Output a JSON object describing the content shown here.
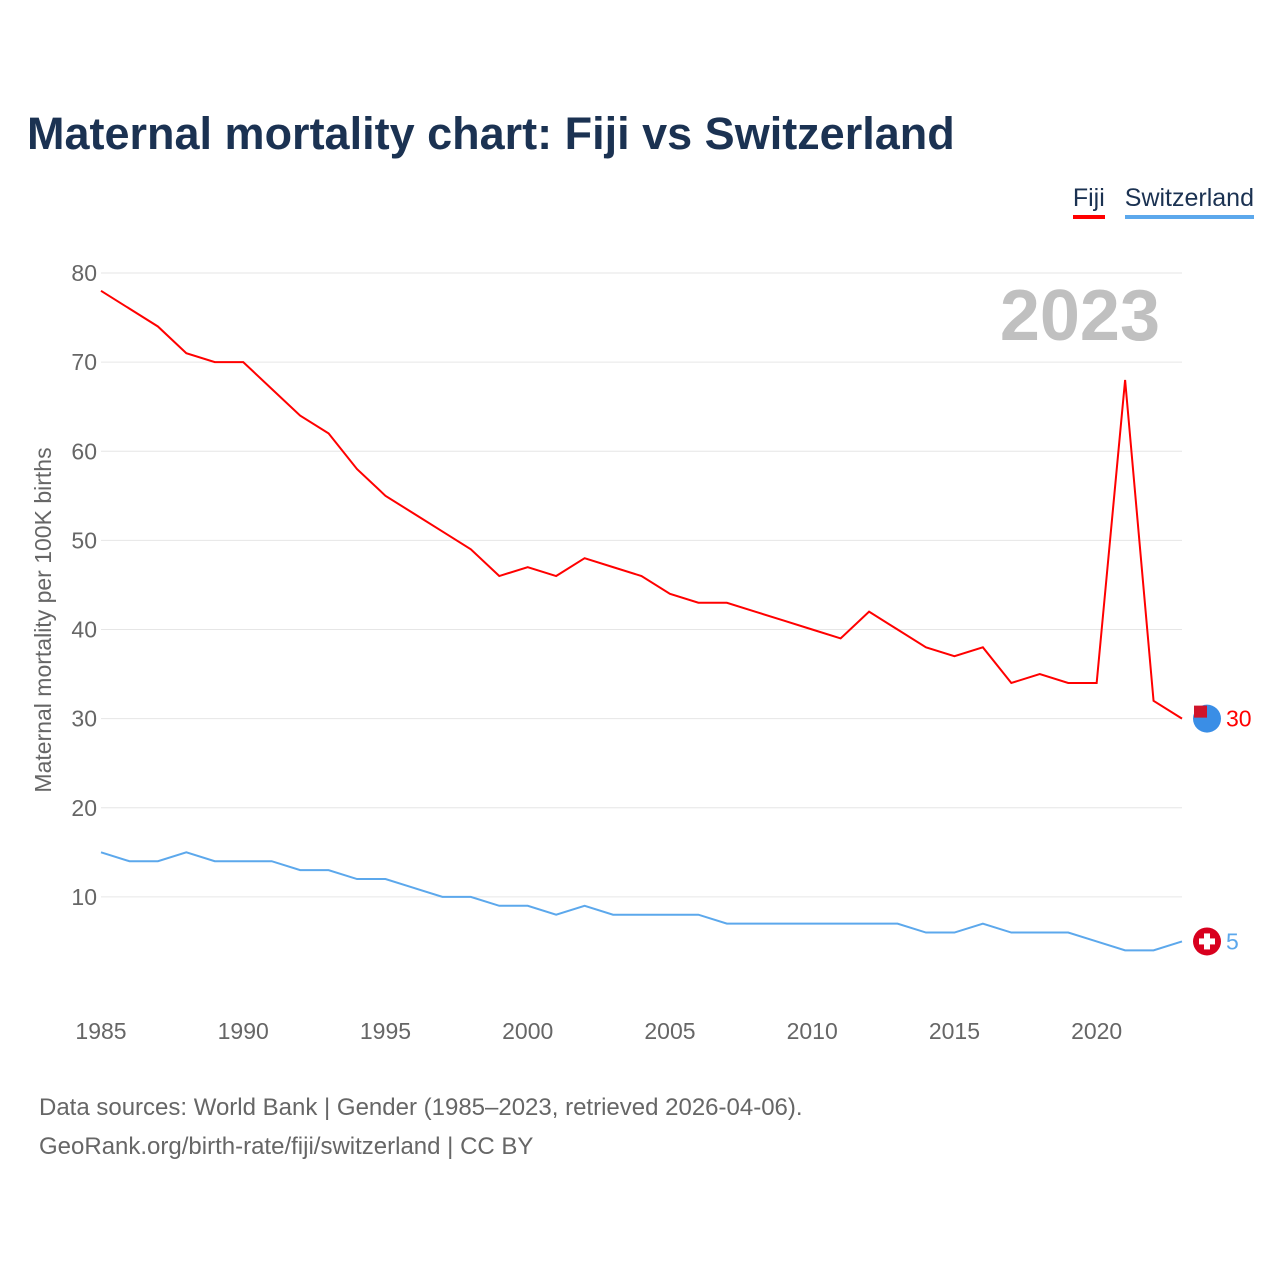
{
  "title": "Maternal mortality chart: Fiji vs Switzerland",
  "source_line1": "Data sources: World Bank | Gender (1985–2023, retrieved 2026-04-06).",
  "source_line2": "GeoRank.org/birth-rate/fiji/switzerland | CC BY",
  "chart_data": {
    "type": "line",
    "title": "Maternal mortality chart: Fiji vs Switzerland",
    "ylabel": "Maternal mortality per 100K births",
    "xlabel": "",
    "year_label": "2023",
    "xlim": [
      1985,
      2023
    ],
    "ylim": [
      0,
      80
    ],
    "xticks": [
      1985,
      1990,
      1995,
      2000,
      2005,
      2010,
      2015,
      2020
    ],
    "yticks": [
      10,
      20,
      30,
      40,
      50,
      60,
      70,
      80
    ],
    "grid": true,
    "legend_position": "top-right",
    "x": [
      1985,
      1986,
      1987,
      1988,
      1989,
      1990,
      1991,
      1992,
      1993,
      1994,
      1995,
      1996,
      1997,
      1998,
      1999,
      2000,
      2001,
      2002,
      2003,
      2004,
      2005,
      2006,
      2007,
      2008,
      2009,
      2010,
      2011,
      2012,
      2013,
      2014,
      2015,
      2016,
      2017,
      2018,
      2019,
      2020,
      2021,
      2022,
      2023
    ],
    "series": [
      {
        "name": "Fiji",
        "color": "#ff0000",
        "end_label": "30",
        "values": [
          78,
          76,
          74,
          71,
          70,
          70,
          67,
          64,
          62,
          58,
          55,
          53,
          51,
          49,
          46,
          47,
          46,
          48,
          47,
          46,
          44,
          43,
          43,
          42,
          41,
          40,
          39,
          42,
          40,
          38,
          37,
          38,
          34,
          35,
          34,
          34,
          68,
          32,
          30
        ]
      },
      {
        "name": "Switzerland",
        "color": "#5ca8ec",
        "end_label": "5",
        "values": [
          15,
          14,
          14,
          15,
          14,
          14,
          14,
          13,
          13,
          12,
          12,
          11,
          10,
          10,
          9,
          9,
          8,
          9,
          8,
          8,
          8,
          8,
          7,
          7,
          7,
          7,
          7,
          7,
          7,
          6,
          6,
          7,
          6,
          6,
          6,
          5,
          4,
          4,
          5
        ]
      }
    ]
  }
}
